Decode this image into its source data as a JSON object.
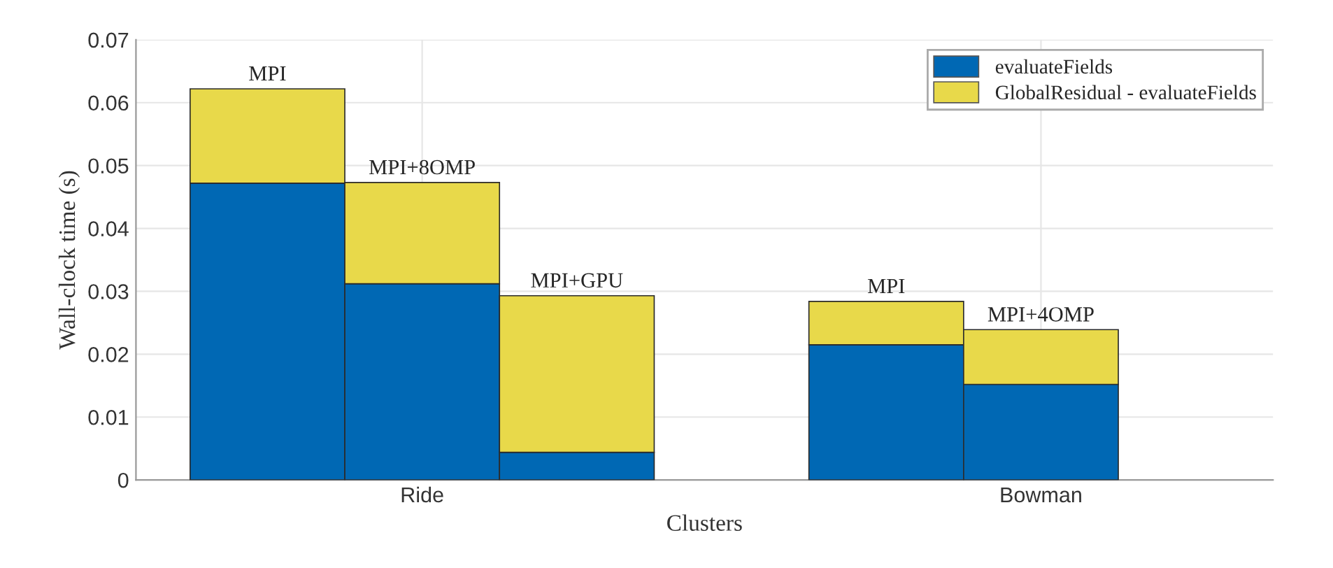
{
  "chart_data": {
    "type": "bar",
    "stacked": true,
    "xlabel": "Clusters",
    "ylabel": "Wall-clock time (s)",
    "categories": [
      null,
      "Ride",
      null,
      null,
      null,
      "Bowman",
      null
    ],
    "series": [
      {
        "name": "evaluateFields",
        "color": "#0068b4",
        "values": [
          0.0472,
          0.0312,
          0.0044,
          null,
          0.0215,
          0.0152,
          null
        ]
      },
      {
        "name": "GlobalResidual - evaluateFields",
        "color": "#e8d94a",
        "values": [
          0.015,
          0.0161,
          0.0249,
          null,
          0.0069,
          0.0087,
          null
        ],
        "value_labels": [
          "MPI",
          "MPI+8OMP",
          "MPI+GPU",
          null,
          "MPI",
          "MPI+4OMP",
          null
        ]
      }
    ],
    "ylim": [
      0,
      0.07
    ],
    "yticks": [
      0,
      0.01,
      0.02,
      0.03,
      0.04,
      0.05,
      0.06,
      0.07
    ],
    "grid": true,
    "legend": "top right"
  }
}
